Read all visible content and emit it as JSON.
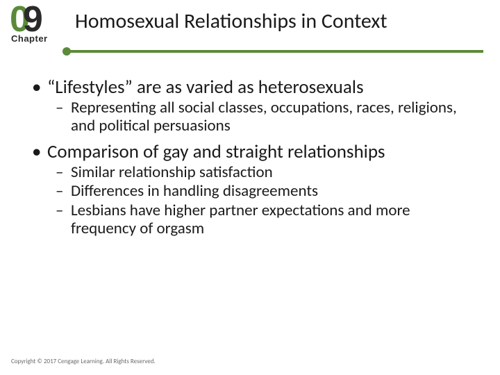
{
  "chapter": {
    "digit0": "0",
    "digit9": "9",
    "label": "Chapter"
  },
  "title": "Homosexual Relationships in Context",
  "bullets": [
    {
      "level": 1,
      "text": "“Lifestyles” are as varied as heterosexuals"
    },
    {
      "level": 2,
      "text": "Representing all social classes, occupations, races, religions, and political persuasions"
    },
    {
      "level": 1,
      "text": "Comparison of gay and straight relationships"
    },
    {
      "level": 2,
      "text": "Similar relationship satisfaction"
    },
    {
      "level": 2,
      "text": "Differences in handling disagreements"
    },
    {
      "level": 2,
      "text": "Lesbians have higher partner expectations and more frequency of orgasm"
    }
  ],
  "footer": "Copyright © 2017 Cengage Learning. All Rights Reserved.",
  "colors": {
    "accent_green": "#5b8a3a",
    "text_dark": "#1a1a1a",
    "footer_gray": "#6a6a6a",
    "background": "#ffffff"
  }
}
